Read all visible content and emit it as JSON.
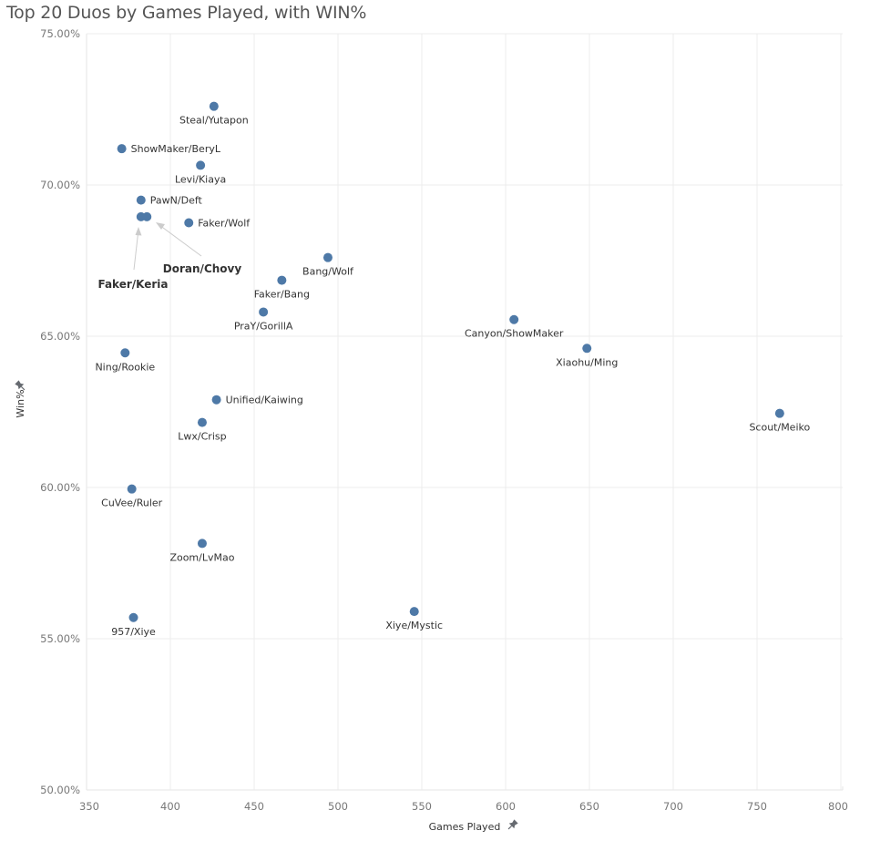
{
  "title": "Top 20 Duos by Games Played, with WIN%",
  "chart_data": {
    "type": "scatter",
    "title": "Top 20 Duos by Games Played, with WIN%",
    "xlabel": "Games Played",
    "ylabel": "Win%",
    "xlim": [
      350,
      807
    ],
    "ylim": [
      50,
      75
    ],
    "x_ticks": [
      350,
      400,
      450,
      500,
      550,
      600,
      650,
      700,
      750,
      800
    ],
    "x_tick_labels": [
      "350",
      "400",
      "450",
      "500",
      "550",
      "600",
      "650",
      "700",
      "750",
      "800"
    ],
    "y_ticks": [
      50,
      55,
      60,
      65,
      70,
      75
    ],
    "y_tick_labels": [
      "50.00%",
      "55.00%",
      "60.00%",
      "65.00%",
      "70.00%",
      "75.00%"
    ],
    "grid": true,
    "marker_color": "#4e79a7",
    "points": [
      {
        "label": "Steal/Yutapon",
        "x": 426,
        "y": 72.6,
        "label_pos": "below"
      },
      {
        "label": "ShowMaker/BeryL",
        "x": 371,
        "y": 71.2,
        "label_pos": "right"
      },
      {
        "label": "Levi/Kiaya",
        "x": 418,
        "y": 70.65,
        "label_pos": "below"
      },
      {
        "label": "PawN/Deft",
        "x": 382.5,
        "y": 69.5,
        "label_pos": "right"
      },
      {
        "label": "Faker/Keria",
        "x": 382.5,
        "y": 68.95,
        "label_pos": "callout-below-left"
      },
      {
        "label": "Doran/Chovy",
        "x": 386,
        "y": 68.95,
        "label_pos": "callout-below-right"
      },
      {
        "label": "Faker/Wolf",
        "x": 411,
        "y": 68.75,
        "label_pos": "right"
      },
      {
        "label": "Bang/Wolf",
        "x": 494,
        "y": 67.6,
        "label_pos": "below"
      },
      {
        "label": "Faker/Bang",
        "x": 466.5,
        "y": 66.85,
        "label_pos": "below"
      },
      {
        "label": "PraY/GorillA",
        "x": 455.5,
        "y": 65.8,
        "label_pos": "below"
      },
      {
        "label": "Canyon/ShowMaker",
        "x": 605,
        "y": 65.55,
        "label_pos": "below"
      },
      {
        "label": "Xiaohu/Ming",
        "x": 648.5,
        "y": 64.6,
        "label_pos": "below"
      },
      {
        "label": "Ning/Rookie",
        "x": 373,
        "y": 64.45,
        "label_pos": "below"
      },
      {
        "label": "Unified/Kaiwing",
        "x": 427.5,
        "y": 62.9,
        "label_pos": "right"
      },
      {
        "label": "Lwx/Crisp",
        "x": 419,
        "y": 62.15,
        "label_pos": "below"
      },
      {
        "label": "Scout/Meiko",
        "x": 763.5,
        "y": 62.45,
        "label_pos": "below"
      },
      {
        "label": "CuVee/Ruler",
        "x": 377,
        "y": 59.95,
        "label_pos": "below"
      },
      {
        "label": "Zoom/LvMao",
        "x": 419,
        "y": 58.15,
        "label_pos": "below"
      },
      {
        "label": "Xiye/Mystic",
        "x": 545.5,
        "y": 55.9,
        "label_pos": "below"
      },
      {
        "label": "957/Xiye",
        "x": 378,
        "y": 55.7,
        "label_pos": "below"
      }
    ]
  }
}
